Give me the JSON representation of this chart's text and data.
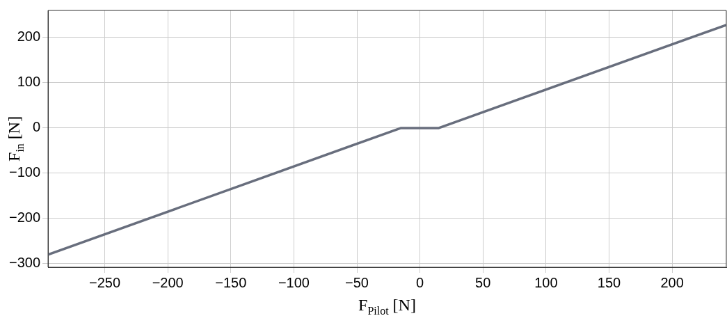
{
  "chart_data": {
    "type": "line",
    "xlabel": "F$_{Pilot}$ [N]",
    "ylabel": "F$_{in}$ [N]",
    "x": [
      -295,
      -15,
      15,
      243
    ],
    "series": [
      {
        "color": "#686e7d",
        "values": [
          -280,
          0,
          0,
          228
        ]
      }
    ],
    "xlim": [
      -295,
      243
    ],
    "xticks": [
      {
        "value": -250,
        "label": "−250"
      },
      {
        "value": -200,
        "label": "−200"
      },
      {
        "value": -150,
        "label": "−150"
      },
      {
        "value": -100,
        "label": "−100"
      },
      {
        "value": -50,
        "label": "−50"
      },
      0,
      50,
      100,
      150,
      200
    ],
    "ylim": [
      -308,
      260
    ],
    "yticks": [
      {
        "value": -300,
        "label": "−300"
      },
      {
        "value": -200,
        "label": "−200"
      },
      {
        "value": -100,
        "label": "−100"
      },
      0,
      100,
      200
    ],
    "grid": true,
    "legend": false,
    "marker": "none",
    "line_style": "solid"
  }
}
